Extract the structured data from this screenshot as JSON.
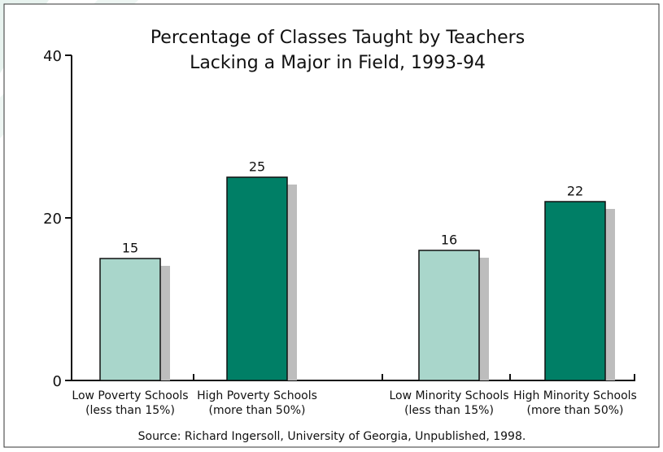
{
  "chart_data": {
    "type": "bar",
    "title": [
      "Percentage of Classes Taught by Teachers",
      "Lacking a Major in Field, 1993-94"
    ],
    "categories": [
      [
        "Low Poverty Schools",
        "(less than 15%)"
      ],
      [
        "High Poverty Schools",
        "(more than 50%)"
      ],
      [
        "Low Minority Schools",
        "(less than 15%)"
      ],
      [
        "High Minority Schools",
        "(more than 50%)"
      ]
    ],
    "values": [
      15,
      25,
      16,
      22
    ],
    "colors": [
      "#a9d6cb",
      "#007f66",
      "#a9d6cb",
      "#007f66"
    ],
    "ylim": [
      0,
      40
    ],
    "yticks": [
      0,
      20,
      40
    ],
    "source": "Source: Richard Ingersoll, University of Georgia, Unpublished, 1998."
  }
}
